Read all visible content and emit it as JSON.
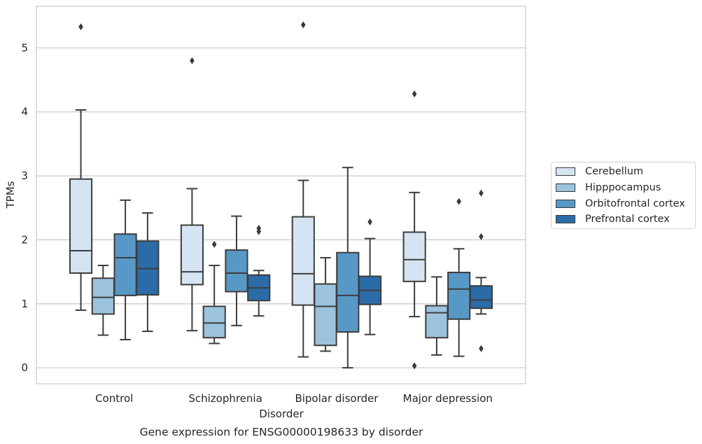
{
  "chart_data": {
    "type": "box",
    "title": "Gene expression for ENSG00000198633 by disorder",
    "xlabel": "Disorder",
    "ylabel": "TPMs",
    "ylim": [
      -0.25,
      5.65
    ],
    "yticks": [
      0,
      1,
      2,
      3,
      4,
      5
    ],
    "grid": "horizontal",
    "legend_position": "right",
    "categories": [
      "Control",
      "Schizophrenia",
      "Bipolar disorder",
      "Major depression"
    ],
    "series": [
      {
        "name": "Cerebellum",
        "color": "#d4e4f2",
        "boxes": [
          {
            "whislo": 0.9,
            "q1": 1.48,
            "med": 1.83,
            "q3": 2.95,
            "whishi": 4.03,
            "fliers": [
              5.33
            ]
          },
          {
            "whislo": 0.58,
            "q1": 1.3,
            "med": 1.5,
            "q3": 2.23,
            "whishi": 2.8,
            "fliers": [
              4.8
            ]
          },
          {
            "whislo": 0.17,
            "q1": 0.98,
            "med": 1.47,
            "q3": 2.36,
            "whishi": 2.93,
            "fliers": [
              5.36
            ]
          },
          {
            "whislo": 0.8,
            "q1": 1.35,
            "med": 1.69,
            "q3": 2.12,
            "whishi": 2.74,
            "fliers": [
              4.28,
              0.03
            ]
          }
        ]
      },
      {
        "name": "Hipppocampus",
        "color": "#9cc3dd",
        "boxes": [
          {
            "whislo": 0.51,
            "q1": 0.84,
            "med": 1.1,
            "q3": 1.4,
            "whishi": 1.6,
            "fliers": []
          },
          {
            "whislo": 0.38,
            "q1": 0.47,
            "med": 0.7,
            "q3": 0.96,
            "whishi": 1.6,
            "fliers": [
              1.93
            ]
          },
          {
            "whislo": 0.26,
            "q1": 0.35,
            "med": 0.96,
            "q3": 1.31,
            "whishi": 1.72,
            "fliers": []
          },
          {
            "whislo": 0.2,
            "q1": 0.47,
            "med": 0.86,
            "q3": 0.97,
            "whishi": 1.42,
            "fliers": []
          }
        ]
      },
      {
        "name": "Orbitofrontal cortex",
        "color": "#5898c6",
        "boxes": [
          {
            "whislo": 0.44,
            "q1": 1.13,
            "med": 1.72,
            "q3": 2.09,
            "whishi": 2.62,
            "fliers": []
          },
          {
            "whislo": 0.66,
            "q1": 1.19,
            "med": 1.48,
            "q3": 1.84,
            "whishi": 2.37,
            "fliers": []
          },
          {
            "whislo": 0.0,
            "q1": 0.56,
            "med": 1.13,
            "q3": 1.8,
            "whishi": 3.13,
            "fliers": []
          },
          {
            "whislo": 0.18,
            "q1": 0.76,
            "med": 1.23,
            "q3": 1.49,
            "whishi": 1.86,
            "fliers": [
              2.6
            ]
          }
        ]
      },
      {
        "name": "Prefrontal cortex",
        "color": "#2b6ba8",
        "boxes": [
          {
            "whislo": 0.57,
            "q1": 1.14,
            "med": 1.55,
            "q3": 1.98,
            "whishi": 2.42,
            "fliers": []
          },
          {
            "whislo": 0.81,
            "q1": 1.05,
            "med": 1.25,
            "q3": 1.45,
            "whishi": 1.52,
            "fliers": [
              2.13,
              2.18
            ]
          },
          {
            "whislo": 0.52,
            "q1": 0.99,
            "med": 1.21,
            "q3": 1.43,
            "whishi": 2.02,
            "fliers": [
              2.28
            ]
          },
          {
            "whislo": 0.84,
            "q1": 0.93,
            "med": 1.06,
            "q3": 1.28,
            "whishi": 1.41,
            "fliers": [
              2.05,
              2.73,
              0.3
            ]
          }
        ]
      }
    ]
  }
}
